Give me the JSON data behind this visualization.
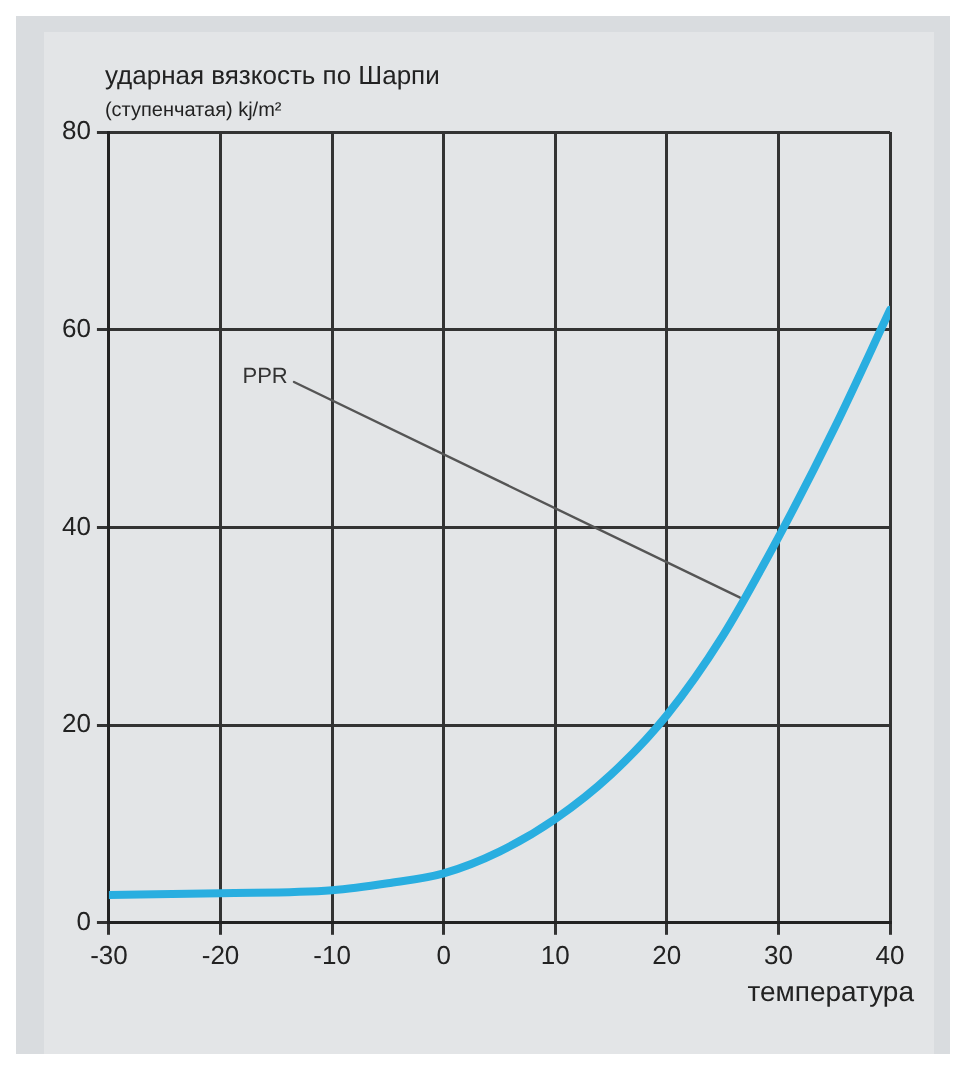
{
  "chart_data": {
    "type": "line",
    "ylabel": "ударная вязкость по Шарпи (ступенчатая) kj/m²",
    "xlabel": "температура",
    "x": [
      -30,
      -20,
      -10,
      -5,
      0,
      5,
      10,
      15,
      20,
      25,
      30,
      35,
      40
    ],
    "series": [
      {
        "color": "#29aee0",
        "values": [
          2.8,
          3,
          3.3,
          4,
          5,
          7.2,
          10.5,
          15,
          21,
          29,
          39,
          50,
          62
        ]
      }
    ],
    "xlim": [
      -30,
      40
    ],
    "xticks": [
      -30,
      -20,
      -10,
      0,
      10,
      20,
      30,
      40
    ],
    "ylim": [
      0,
      80
    ],
    "yticks": [
      0,
      20,
      40,
      60,
      80
    ],
    "grid": true,
    "marker": "none",
    "line_style": "solid",
    "annotations": [
      {
        "text": "PPR",
        "x": 26.5,
        "y": 33
      }
    ]
  }
}
